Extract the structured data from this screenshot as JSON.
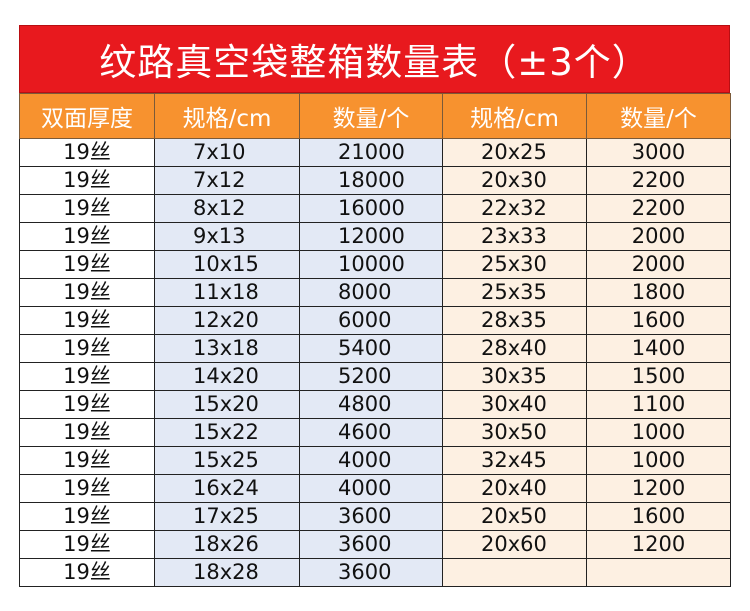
{
  "title": "纹路真空袋整箱数量表（±3个）",
  "headers": [
    "双面厚度",
    "规格/cm",
    "数量/个",
    "规格/cm",
    "数量/个"
  ],
  "rows": [
    {
      "thickness": "19丝",
      "spec1": "7x10",
      "qty1": "21000",
      "spec2": "20x25",
      "qty2": "3000"
    },
    {
      "thickness": "19丝",
      "spec1": "7x12",
      "qty1": "18000",
      "spec2": "20x30",
      "qty2": "2200"
    },
    {
      "thickness": "19丝",
      "spec1": "8x12",
      "qty1": "16000",
      "spec2": "22x32",
      "qty2": "2200"
    },
    {
      "thickness": "19丝",
      "spec1": "9x13",
      "qty1": "12000",
      "spec2": "23x33",
      "qty2": "2000"
    },
    {
      "thickness": "19丝",
      "spec1": "10x15",
      "qty1": "10000",
      "spec2": "25x30",
      "qty2": "2000"
    },
    {
      "thickness": "19丝",
      "spec1": "11x18",
      "qty1": "8000",
      "spec2": "25x35",
      "qty2": "1800"
    },
    {
      "thickness": "19丝",
      "spec1": "12x20",
      "qty1": "6000",
      "spec2": "28x35",
      "qty2": "1600"
    },
    {
      "thickness": "19丝",
      "spec1": "13x18",
      "qty1": "5400",
      "spec2": "28x40",
      "qty2": "1400"
    },
    {
      "thickness": "19丝",
      "spec1": "14x20",
      "qty1": "5200",
      "spec2": "30x35",
      "qty2": "1500"
    },
    {
      "thickness": "19丝",
      "spec1": "15x20",
      "qty1": "4800",
      "spec2": "30x40",
      "qty2": "1100"
    },
    {
      "thickness": "19丝",
      "spec1": "15x22",
      "qty1": "4600",
      "spec2": "30x50",
      "qty2": "1000"
    },
    {
      "thickness": "19丝",
      "spec1": "15x25",
      "qty1": "4000",
      "spec2": "32x45",
      "qty2": "1000"
    },
    {
      "thickness": "19丝",
      "spec1": "16x24",
      "qty1": "4000",
      "spec2": "20x40",
      "qty2": "1200"
    },
    {
      "thickness": "19丝",
      "spec1": "17x25",
      "qty1": "3600",
      "spec2": "20x50",
      "qty2": "1600"
    },
    {
      "thickness": "19丝",
      "spec1": "18x26",
      "qty1": "3600",
      "spec2": "20x60",
      "qty2": "1200"
    },
    {
      "thickness": "19丝",
      "spec1": "18x28",
      "qty1": "3600",
      "spec2": "",
      "qty2": ""
    }
  ],
  "colors": {
    "title_bg": "#e8191e",
    "header_bg": "#f7922f",
    "left_block_bg": "#e3e9f5",
    "right_block_bg": "#fdf0e2"
  }
}
